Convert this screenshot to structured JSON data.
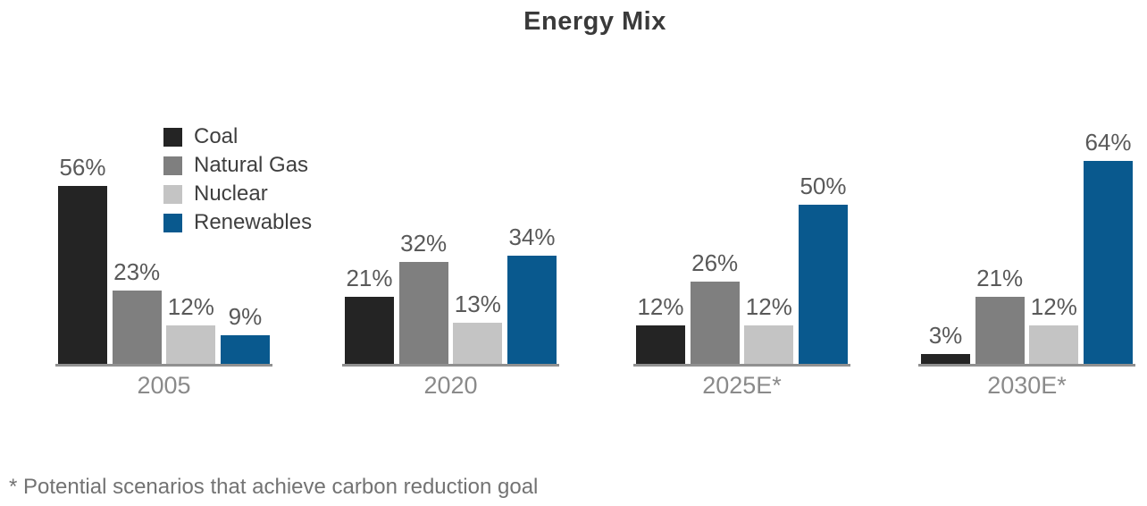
{
  "title": "Energy Mix",
  "footnote": "* Potential scenarios that achieve carbon reduction goal",
  "colors": {
    "coal": "#242424",
    "natural_gas": "#7F7F7F",
    "nuclear": "#C4C4C4",
    "renewables": "#09598E",
    "baseline": "#909090",
    "value_label_text": "#595959",
    "year_label_text": "#8A8A8A",
    "legend_text": "#3F3F3F",
    "title_text": "#3A3A3A",
    "footnote_text": "#737373"
  },
  "chart_data": {
    "type": "bar",
    "title": "Energy Mix",
    "unit": "%",
    "categories": [
      "2005",
      "2020",
      "2025E*",
      "2030E*"
    ],
    "series": [
      {
        "name": "Coal",
        "color": "#242424",
        "values": [
          56,
          21,
          12,
          3
        ]
      },
      {
        "name": "Natural Gas",
        "color": "#7F7F7F",
        "values": [
          23,
          32,
          26,
          21
        ]
      },
      {
        "name": "Nuclear",
        "color": "#C4C4C4",
        "values": [
          12,
          13,
          12,
          12
        ]
      },
      {
        "name": "Renewables",
        "color": "#09598E",
        "values": [
          9,
          34,
          50,
          64
        ]
      }
    ],
    "ylim": [
      0,
      70
    ],
    "grid": false,
    "y_axis_shown": false,
    "value_labels_shown": true,
    "legend_position": "upper-left inside plot",
    "footnote": "* Potential scenarios that achieve carbon reduction goal"
  }
}
